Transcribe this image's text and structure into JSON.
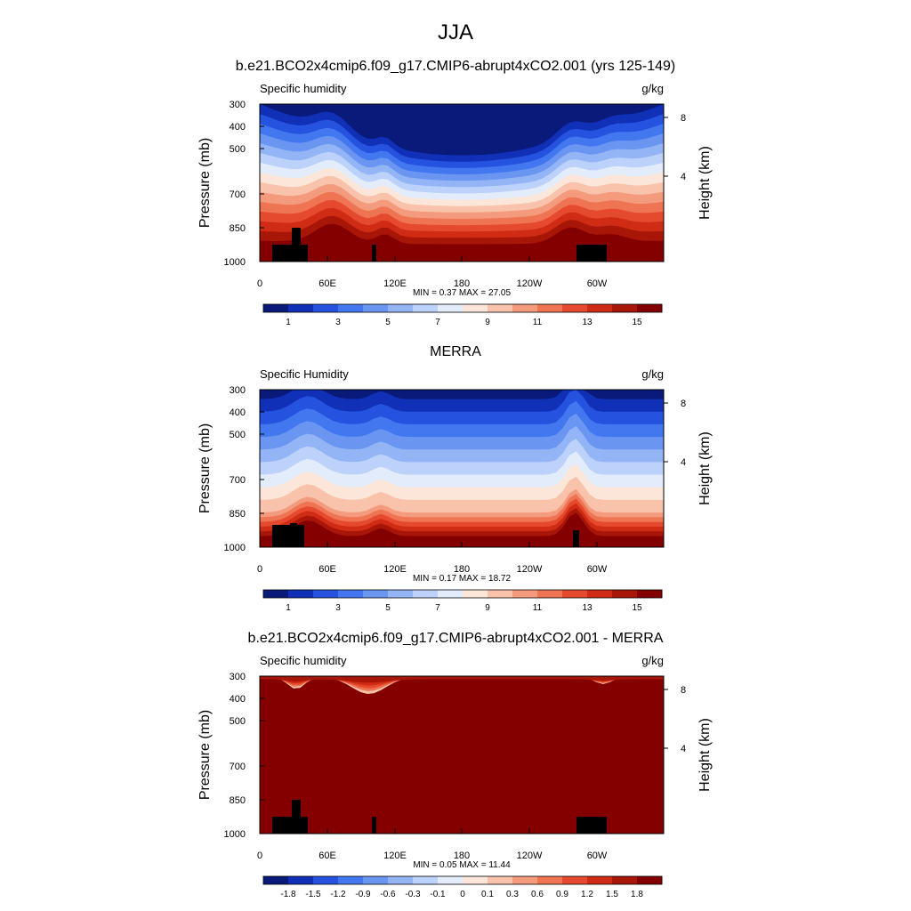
{
  "figure": {
    "title": "JJA"
  },
  "chart_data": [
    {
      "type": "heatmap",
      "title": "b.e21.BCO2x4cmip6.f09_g17.CMIP6-abrupt4xCO2.001 (yrs 125-149)",
      "left_string": "Specific humidity",
      "right_string": "g/kg",
      "ylabel": "Pressure (mb)",
      "y2label": "Height (km)",
      "xticks": [
        "0",
        "60E",
        "120E",
        "180",
        "120W",
        "60W"
      ],
      "yticks": [
        "300",
        "400",
        "500",
        "700",
        "850",
        "1000"
      ],
      "y2ticks": [
        "8",
        "4"
      ],
      "stats": {
        "min_label": "MIN =",
        "min": "0.37",
        "max_label": "MAX =",
        "max": "27.05"
      },
      "colorbar_labels": [
        "1",
        "3",
        "5",
        "7",
        "9",
        "11",
        "13",
        "15"
      ],
      "palette": [
        "#0a1a7a",
        "#1030b8",
        "#2553e0",
        "#4377f0",
        "#6a96f2",
        "#93b5f6",
        "#bcd2fa",
        "#e3ecfb",
        "#fbe6d9",
        "#f8c3aa",
        "#f39b7c",
        "#ee7453",
        "#e64a2e",
        "#d02b14",
        "#a81608",
        "#840000"
      ]
    },
    {
      "type": "heatmap",
      "title": "MERRA",
      "left_string": "Specific Humidity",
      "right_string": "g/kg",
      "ylabel": "Pressure (mb)",
      "y2label": "Height (km)",
      "xticks": [
        "0",
        "60E",
        "120E",
        "180",
        "120W",
        "60W"
      ],
      "yticks": [
        "300",
        "400",
        "500",
        "700",
        "850",
        "1000"
      ],
      "y2ticks": [
        "8",
        "4"
      ],
      "stats": {
        "min_label": "MIN =",
        "min": "0.17",
        "max_label": "MAX =",
        "max": "18.72"
      },
      "colorbar_labels": [
        "1",
        "3",
        "5",
        "7",
        "9",
        "11",
        "13",
        "15"
      ],
      "palette": [
        "#0a1a7a",
        "#1030b8",
        "#2553e0",
        "#4377f0",
        "#6a96f2",
        "#93b5f6",
        "#bcd2fa",
        "#e3ecfb",
        "#fbe6d9",
        "#f8c3aa",
        "#f39b7c",
        "#ee7453",
        "#e64a2e",
        "#d02b14",
        "#a81608",
        "#840000"
      ]
    },
    {
      "type": "heatmap",
      "title": "b.e21.BCO2x4cmip6.f09_g17.CMIP6-abrupt4xCO2.001 - MERRA",
      "left_string": "Specific humidity",
      "right_string": "g/kg",
      "ylabel": "Pressure (mb)",
      "y2label": "Height (km)",
      "xticks": [
        "0",
        "60E",
        "120E",
        "180",
        "120W",
        "60W"
      ],
      "yticks": [
        "300",
        "400",
        "500",
        "700",
        "850",
        "1000"
      ],
      "y2ticks": [
        "8",
        "4"
      ],
      "stats": {
        "min_label": "MIN =",
        "min": "0.05",
        "max_label": "MAX =",
        "max": "11.44"
      },
      "colorbar_labels": [
        "-1.8",
        "-1.5",
        "-1.2",
        "-0.9",
        "-0.6",
        "-0.3",
        "-0.1",
        "0",
        "0.1",
        "0.3",
        "0.6",
        "0.9",
        "1.2",
        "1.5",
        "1.8"
      ],
      "palette": [
        "#0a1a7a",
        "#1030b8",
        "#2553e0",
        "#4377f0",
        "#6a96f2",
        "#93b5f6",
        "#bcd2fa",
        "#e3ecfb",
        "#fbe6d9",
        "#f8c3aa",
        "#f39b7c",
        "#ee7453",
        "#e64a2e",
        "#d02b14",
        "#a81608",
        "#840000"
      ]
    }
  ]
}
